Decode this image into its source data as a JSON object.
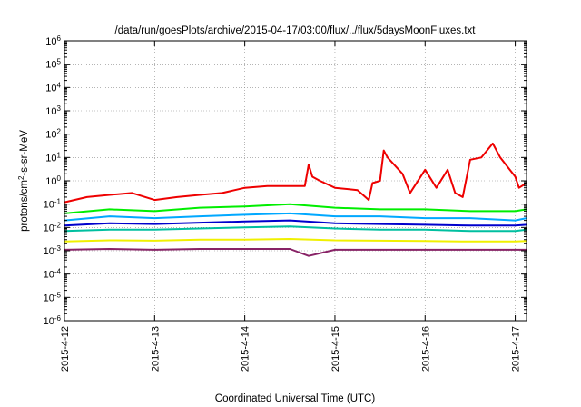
{
  "chart_data": {
    "type": "line",
    "title": "/data/run/goesPlots/archive/2015-04-17/03:00/flux/../flux/5daysMoonFluxes.txt",
    "xlabel": "Coordinated Universal Time (UTC)",
    "ylabel_parts": [
      "protons/cm",
      "2",
      "-s-sr-MeV"
    ],
    "y_scale": "log",
    "ylim": [
      1e-06,
      1000000.0
    ],
    "y_ticks": [
      {
        "base": "10",
        "exp": "6",
        "value": 1000000.0
      },
      {
        "base": "10",
        "exp": "5",
        "value": 100000.0
      },
      {
        "base": "10",
        "exp": "4",
        "value": 10000.0
      },
      {
        "base": "10",
        "exp": "3",
        "value": 1000.0
      },
      {
        "base": "10",
        "exp": "2",
        "value": 100.0
      },
      {
        "base": "10",
        "exp": "1",
        "value": 10.0
      },
      {
        "base": "10",
        "exp": "0",
        "value": 1
      },
      {
        "base": "10",
        "exp": "-1",
        "value": 0.1
      },
      {
        "base": "10",
        "exp": "-2",
        "value": 0.01
      },
      {
        "base": "10",
        "exp": "-3",
        "value": 0.001
      },
      {
        "base": "10",
        "exp": "-4",
        "value": 0.0001
      },
      {
        "base": "10",
        "exp": "-5",
        "value": 1e-05
      },
      {
        "base": "10",
        "exp": "-6",
        "value": 1e-06
      }
    ],
    "xlim": [
      "2015-04-12",
      "2015-04-17T03:00"
    ],
    "x_ticks": [
      "2015-4-12",
      "2015-4-13",
      "2015-4-14",
      "2015-4-15",
      "2015-4-16",
      "2015-4-17"
    ],
    "grid": true,
    "series": [
      {
        "color": "#ee0000",
        "x": [
          "2015-04-12T00:00",
          "2015-04-12T06:00",
          "2015-04-12T12:00",
          "2015-04-12T18:00",
          "2015-04-13T00:00",
          "2015-04-13T06:00",
          "2015-04-13T12:00",
          "2015-04-13T18:00",
          "2015-04-14T00:00",
          "2015-04-14T06:00",
          "2015-04-14T12:00",
          "2015-04-14T16:00",
          "2015-04-14T17:00",
          "2015-04-14T18:00",
          "2015-04-14T20:00",
          "2015-04-15T00:00",
          "2015-04-15T06:00",
          "2015-04-15T09:00",
          "2015-04-15T10:00",
          "2015-04-15T12:00",
          "2015-04-15T13:00",
          "2015-04-15T14:00",
          "2015-04-15T18:00",
          "2015-04-15T20:00",
          "2015-04-16T00:00",
          "2015-04-16T03:00",
          "2015-04-16T06:00",
          "2015-04-16T08:00",
          "2015-04-16T10:00",
          "2015-04-16T12:00",
          "2015-04-16T15:00",
          "2015-04-16T18:00",
          "2015-04-16T20:00",
          "2015-04-17T00:00",
          "2015-04-17T01:00",
          "2015-04-17T03:00"
        ],
        "values": [
          0.12,
          0.2,
          0.25,
          0.3,
          0.15,
          0.2,
          0.25,
          0.3,
          0.5,
          0.6,
          0.6,
          0.6,
          5,
          1.5,
          1.0,
          0.5,
          0.4,
          0.15,
          0.8,
          1.0,
          20,
          10,
          2,
          0.3,
          3,
          0.5,
          3,
          0.3,
          0.2,
          8,
          10,
          40,
          10,
          1.5,
          0.5,
          0.8
        ]
      },
      {
        "color": "#00ee00",
        "x": [
          "2015-04-12T00:00",
          "2015-04-12T12:00",
          "2015-04-13T00:00",
          "2015-04-13T12:00",
          "2015-04-14T00:00",
          "2015-04-14T12:00",
          "2015-04-15T00:00",
          "2015-04-15T12:00",
          "2015-04-16T00:00",
          "2015-04-16T12:00",
          "2015-04-17T00:00",
          "2015-04-17T03:00"
        ],
        "values": [
          0.04,
          0.06,
          0.05,
          0.07,
          0.08,
          0.1,
          0.07,
          0.06,
          0.06,
          0.05,
          0.05,
          0.06
        ]
      },
      {
        "color": "#00a8ff",
        "x": [
          "2015-04-12T00:00",
          "2015-04-12T12:00",
          "2015-04-13T00:00",
          "2015-04-13T12:00",
          "2015-04-14T00:00",
          "2015-04-14T12:00",
          "2015-04-15T00:00",
          "2015-04-15T12:00",
          "2015-04-16T00:00",
          "2015-04-16T12:00",
          "2015-04-17T00:00",
          "2015-04-17T03:00"
        ],
        "values": [
          0.02,
          0.03,
          0.025,
          0.03,
          0.035,
          0.04,
          0.03,
          0.03,
          0.025,
          0.025,
          0.02,
          0.025
        ]
      },
      {
        "color": "#0000cc",
        "x": [
          "2015-04-12T00:00",
          "2015-04-12T12:00",
          "2015-04-13T00:00",
          "2015-04-13T12:00",
          "2015-04-14T00:00",
          "2015-04-14T12:00",
          "2015-04-15T00:00",
          "2015-04-15T12:00",
          "2015-04-16T00:00",
          "2015-04-16T12:00",
          "2015-04-17T00:00",
          "2015-04-17T03:00"
        ],
        "values": [
          0.012,
          0.015,
          0.014,
          0.016,
          0.018,
          0.02,
          0.015,
          0.014,
          0.013,
          0.012,
          0.012,
          0.013
        ]
      },
      {
        "color": "#00bfa0",
        "x": [
          "2015-04-12T00:00",
          "2015-04-12T12:00",
          "2015-04-13T00:00",
          "2015-04-13T12:00",
          "2015-04-14T00:00",
          "2015-04-14T12:00",
          "2015-04-15T00:00",
          "2015-04-15T12:00",
          "2015-04-16T00:00",
          "2015-04-16T12:00",
          "2015-04-17T00:00",
          "2015-04-17T03:00"
        ],
        "values": [
          0.007,
          0.008,
          0.008,
          0.009,
          0.01,
          0.011,
          0.009,
          0.008,
          0.008,
          0.007,
          0.007,
          0.008
        ]
      },
      {
        "color": "#f0f000",
        "x": [
          "2015-04-12T00:00",
          "2015-04-12T12:00",
          "2015-04-13T00:00",
          "2015-04-13T12:00",
          "2015-04-14T00:00",
          "2015-04-14T12:00",
          "2015-04-15T00:00",
          "2015-04-15T12:00",
          "2015-04-16T00:00",
          "2015-04-16T12:00",
          "2015-04-17T00:00",
          "2015-04-17T03:00"
        ],
        "values": [
          0.0025,
          0.0028,
          0.0027,
          0.003,
          0.003,
          0.0032,
          0.0028,
          0.0027,
          0.0026,
          0.0025,
          0.0025,
          0.0026
        ]
      },
      {
        "color": "#882266",
        "x": [
          "2015-04-12T00:00",
          "2015-04-12T12:00",
          "2015-04-13T00:00",
          "2015-04-13T12:00",
          "2015-04-14T00:00",
          "2015-04-14T12:00",
          "2015-04-14T17:00",
          "2015-04-15T00:00",
          "2015-04-15T12:00",
          "2015-04-16T00:00",
          "2015-04-16T12:00",
          "2015-04-17T00:00",
          "2015-04-17T03:00"
        ],
        "values": [
          0.0011,
          0.0012,
          0.0011,
          0.0012,
          0.0012,
          0.0012,
          0.0006,
          0.0011,
          0.0011,
          0.0011,
          0.0011,
          0.0011,
          0.0011
        ]
      }
    ]
  }
}
